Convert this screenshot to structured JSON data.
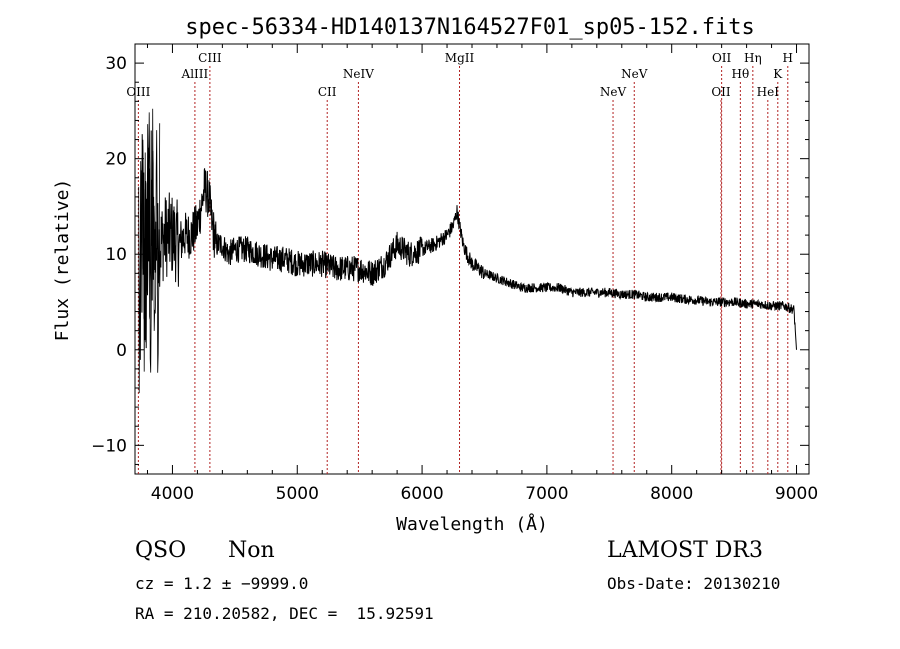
{
  "chart_data": {
    "type": "line",
    "title": "spec-56334-HD140137N164527F01_sp05-152.fits",
    "xlabel": "Wavelength (Å)",
    "ylabel": "Flux (relative)",
    "xlim": [
      3700,
      9100
    ],
    "ylim": [
      -13,
      32
    ],
    "xticks": [
      "4000",
      "5000",
      "6000",
      "7000",
      "8000",
      "9000"
    ],
    "yticks": [
      "−10",
      "0",
      "10",
      "20",
      "30"
    ],
    "ytick_values": [
      -10,
      0,
      10,
      20,
      30
    ],
    "xtick_values": [
      4000,
      5000,
      6000,
      7000,
      8000,
      9000
    ],
    "grid": false,
    "series": [
      {
        "name": "spectrum",
        "x": [
          3700,
          3720,
          3740,
          3760,
          3780,
          3800,
          3850,
          3900,
          3950,
          4000,
          4050,
          4100,
          4150,
          4200,
          4230,
          4260,
          4290,
          4320,
          4350,
          4400,
          4450,
          4500,
          4600,
          4700,
          4800,
          4900,
          5000,
          5100,
          5200,
          5300,
          5400,
          5500,
          5600,
          5700,
          5800,
          5900,
          6000,
          6100,
          6200,
          6250,
          6280,
          6300,
          6330,
          6360,
          6400,
          6450,
          6500,
          6600,
          6700,
          6800,
          6900,
          7000,
          7100,
          7200,
          7300,
          7400,
          7500,
          7600,
          7700,
          7800,
          7900,
          8000,
          8100,
          8200,
          8300,
          8400,
          8500,
          8600,
          8700,
          8800,
          8900,
          8980,
          9000
        ],
        "y": [
          5,
          12,
          2,
          15,
          8,
          11,
          12,
          11,
          12,
          12,
          11,
          12,
          12,
          13,
          15,
          17,
          16,
          13,
          11,
          11,
          10,
          10.5,
          10.5,
          10,
          9.5,
          9.5,
          9,
          9,
          9,
          8.5,
          8.5,
          8.5,
          8,
          9,
          11,
          10,
          10.5,
          11,
          12,
          13,
          14.5,
          13,
          11,
          10,
          9,
          8.5,
          8,
          7.5,
          7,
          6.5,
          6.5,
          6.5,
          6.5,
          6,
          6,
          6,
          6,
          5.8,
          5.8,
          5.5,
          5.5,
          5.5,
          5.3,
          5.2,
          5,
          5,
          5,
          4.8,
          4.8,
          4.6,
          4.6,
          4.2,
          0
        ]
      }
    ],
    "lines": [
      {
        "label": "OIII",
        "x": 3727,
        "row": 3
      },
      {
        "label": "AlIII",
        "x": 4180,
        "row": 2
      },
      {
        "label": "CIII",
        "x": 4300,
        "row": 1
      },
      {
        "label": "CII",
        "x": 5240,
        "row": 3
      },
      {
        "label": "NeIV",
        "x": 5490,
        "row": 2
      },
      {
        "label": "MgII",
        "x": 6300,
        "row": 1
      },
      {
        "label": "NeV",
        "x": 7530,
        "row": 3
      },
      {
        "label": "NeV",
        "x": 7700,
        "row": 2
      },
      {
        "label": "OII",
        "x": 8395,
        "row": 3
      },
      {
        "label": "OII",
        "x": 8400,
        "row": 1
      },
      {
        "label": "Hθ",
        "x": 8550,
        "row": 2
      },
      {
        "label": "Hη",
        "x": 8650,
        "row": 1
      },
      {
        "label": "HeI",
        "x": 8770,
        "row": 3
      },
      {
        "label": "K",
        "x": 8850,
        "row": 2
      },
      {
        "label": "H",
        "x": 8930,
        "row": 1
      }
    ]
  },
  "info": {
    "class": "QSO",
    "subclass": "Non",
    "cz": "cz = 1.2 ± −9999.0",
    "coords": "RA = 210.20582, DEC =  15.92591",
    "survey": "LAMOST DR3",
    "obsdate": "Obs-Date: 20130210"
  },
  "colors": {
    "line": "#000000",
    "marker": "#b22222"
  }
}
